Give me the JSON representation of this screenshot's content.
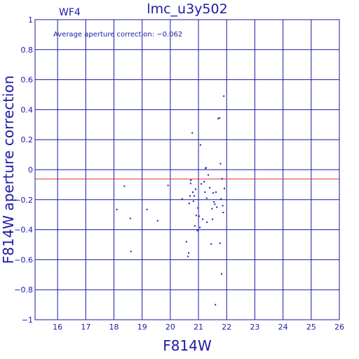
{
  "chart_data": {
    "type": "scatter",
    "title": "lmc_u3y502",
    "panel_label": "WF4",
    "xlabel": "F814W",
    "ylabel": "F814W aperture correction",
    "annotation": "Average aperture correction: −0.062",
    "xlim": [
      15.2,
      26
    ],
    "ylim": [
      -1,
      1
    ],
    "x_ticks": [
      16,
      17,
      18,
      19,
      20,
      21,
      22,
      23,
      24,
      25,
      26
    ],
    "y_ticks": [
      -1,
      -0.8,
      -0.6,
      -0.4,
      -0.2,
      0,
      0.2,
      0.4,
      0.6,
      0.8,
      1
    ],
    "x_tick_labels": [
      "16",
      "17",
      "18",
      "19",
      "20",
      "21",
      "22",
      "23",
      "24",
      "25",
      "26"
    ],
    "y_tick_labels": [
      "−1",
      "−0.8",
      "−0.6",
      "−0.4",
      "−0.2",
      "0",
      "0.2",
      "0.4",
      "0.6",
      "0.8",
      "1"
    ],
    "grid": true,
    "reference_line": -0.062,
    "colors": {
      "axes": "#1a1aa6",
      "points": "#1a1aa6",
      "reference_line": "#e03030"
    },
    "points": [
      {
        "x": 18.1,
        "y": -0.265
      },
      {
        "x": 18.37,
        "y": -0.11
      },
      {
        "x": 18.58,
        "y": -0.325
      },
      {
        "x": 18.6,
        "y": -0.545
      },
      {
        "x": 19.17,
        "y": -0.265
      },
      {
        "x": 19.55,
        "y": -0.34
      },
      {
        "x": 19.92,
        "y": -0.105
      },
      {
        "x": 20.42,
        "y": -0.195
      },
      {
        "x": 20.57,
        "y": -0.48
      },
      {
        "x": 20.63,
        "y": -0.578
      },
      {
        "x": 20.65,
        "y": -0.555
      },
      {
        "x": 20.67,
        "y": -0.225
      },
      {
        "x": 20.7,
        "y": -0.175
      },
      {
        "x": 20.72,
        "y": -0.092
      },
      {
        "x": 20.73,
        "y": -0.07
      },
      {
        "x": 20.78,
        "y": 0.245
      },
      {
        "x": 20.8,
        "y": -0.15
      },
      {
        "x": 20.82,
        "y": -0.21
      },
      {
        "x": 20.85,
        "y": -0.175
      },
      {
        "x": 20.87,
        "y": -0.375
      },
      {
        "x": 20.9,
        "y": -0.13
      },
      {
        "x": 20.92,
        "y": -0.305
      },
      {
        "x": 20.96,
        "y": -0.405
      },
      {
        "x": 20.98,
        "y": -0.255
      },
      {
        "x": 21.02,
        "y": -0.31
      },
      {
        "x": 21.05,
        "y": -0.385
      },
      {
        "x": 21.07,
        "y": 0.165
      },
      {
        "x": 21.1,
        "y": -0.095
      },
      {
        "x": 21.15,
        "y": -0.33
      },
      {
        "x": 21.2,
        "y": -0.08
      },
      {
        "x": 21.23,
        "y": -0.15
      },
      {
        "x": 21.25,
        "y": 0.01
      },
      {
        "x": 21.27,
        "y": 0.012
      },
      {
        "x": 21.29,
        "y": -0.19
      },
      {
        "x": 21.3,
        "y": -0.35
      },
      {
        "x": 21.35,
        "y": -0.035
      },
      {
        "x": 21.4,
        "y": -0.12
      },
      {
        "x": 21.45,
        "y": -0.495
      },
      {
        "x": 21.48,
        "y": -0.26
      },
      {
        "x": 21.5,
        "y": -0.33
      },
      {
        "x": 21.52,
        "y": -0.155
      },
      {
        "x": 21.55,
        "y": -0.215
      },
      {
        "x": 21.58,
        "y": -0.23
      },
      {
        "x": 21.6,
        "y": -0.9
      },
      {
        "x": 21.62,
        "y": -0.15
      },
      {
        "x": 21.65,
        "y": -0.25
      },
      {
        "x": 21.7,
        "y": 0.34
      },
      {
        "x": 21.75,
        "y": 0.345
      },
      {
        "x": 21.76,
        "y": -0.49
      },
      {
        "x": 21.78,
        "y": 0.04
      },
      {
        "x": 21.8,
        "y": -0.195
      },
      {
        "x": 21.82,
        "y": -0.695
      },
      {
        "x": 21.84,
        "y": -0.06
      },
      {
        "x": 21.86,
        "y": -0.24
      },
      {
        "x": 21.88,
        "y": -0.285
      },
      {
        "x": 21.9,
        "y": 0.49
      },
      {
        "x": 21.92,
        "y": -0.125
      }
    ]
  }
}
